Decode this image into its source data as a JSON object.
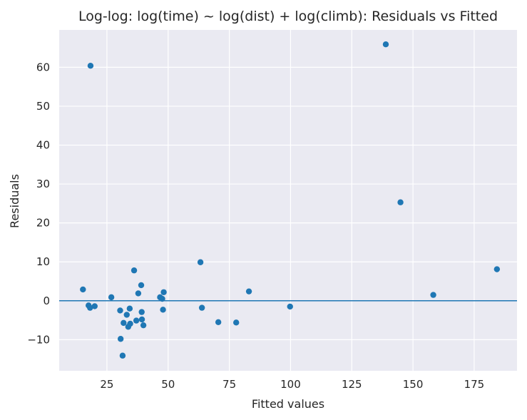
{
  "chart_data": {
    "type": "scatter",
    "title": "Log-log: log(time) ~ log(dist) + log(climb): Residuals vs Fitted",
    "xlabel": "Fitted values",
    "ylabel": "Residuals",
    "xlim": [
      5.5,
      192.5
    ],
    "ylim": [
      -18.0,
      69.6
    ],
    "xticks": [
      25,
      50,
      75,
      100,
      125,
      150,
      175
    ],
    "yticks": [
      -10,
      0,
      10,
      20,
      30,
      40,
      50,
      60
    ],
    "xtick_labels": [
      "25",
      "50",
      "75",
      "100",
      "125",
      "150",
      "175"
    ],
    "ytick_labels": [
      "−10",
      "0",
      "10",
      "20",
      "30",
      "40",
      "50",
      "60"
    ],
    "grid": true,
    "reference_line_y": 0,
    "colors": {
      "background": "#eaeaf2",
      "grid": "#ffffff",
      "points": "#1f77b4",
      "reference_line": "#1f77b4"
    },
    "points": [
      {
        "x": 15.2,
        "y": 2.9
      },
      {
        "x": 17.5,
        "y": -1.2
      },
      {
        "x": 18.1,
        "y": -1.8
      },
      {
        "x": 18.3,
        "y": 60.4
      },
      {
        "x": 20.0,
        "y": -1.4
      },
      {
        "x": 26.8,
        "y": 0.9
      },
      {
        "x": 30.4,
        "y": -2.5
      },
      {
        "x": 30.6,
        "y": -9.8
      },
      {
        "x": 31.4,
        "y": -14.1
      },
      {
        "x": 31.8,
        "y": -5.7
      },
      {
        "x": 33.1,
        "y": -3.6
      },
      {
        "x": 33.7,
        "y": -6.7
      },
      {
        "x": 34.3,
        "y": -2.0
      },
      {
        "x": 34.5,
        "y": -5.9
      },
      {
        "x": 36.1,
        "y": 7.8
      },
      {
        "x": 37.0,
        "y": -5.1
      },
      {
        "x": 37.8,
        "y": 1.9
      },
      {
        "x": 39.0,
        "y": 4.0
      },
      {
        "x": 39.2,
        "y": -2.9
      },
      {
        "x": 39.3,
        "y": -4.8
      },
      {
        "x": 39.9,
        "y": -6.3
      },
      {
        "x": 46.7,
        "y": 0.9
      },
      {
        "x": 47.6,
        "y": 0.5
      },
      {
        "x": 47.9,
        "y": -2.3
      },
      {
        "x": 48.2,
        "y": 2.2
      },
      {
        "x": 63.2,
        "y": 9.9
      },
      {
        "x": 63.8,
        "y": -1.8
      },
      {
        "x": 70.5,
        "y": -5.5
      },
      {
        "x": 77.8,
        "y": -5.6
      },
      {
        "x": 83.0,
        "y": 2.4
      },
      {
        "x": 99.8,
        "y": -1.5
      },
      {
        "x": 138.9,
        "y": 65.9
      },
      {
        "x": 144.9,
        "y": 25.3
      },
      {
        "x": 158.3,
        "y": 1.5
      },
      {
        "x": 184.3,
        "y": 8.1
      }
    ]
  }
}
